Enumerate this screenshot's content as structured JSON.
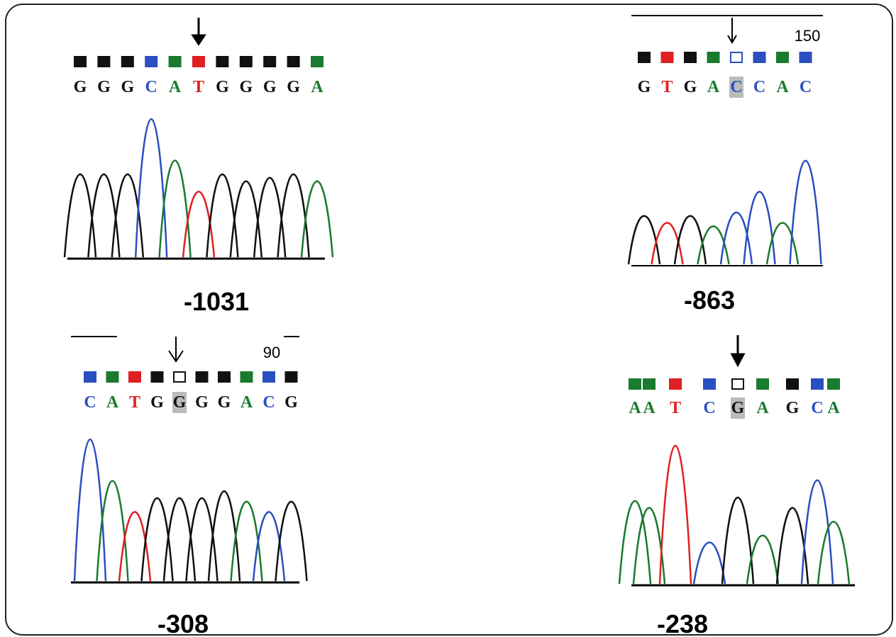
{
  "panels": [
    {
      "label": "-1031",
      "sequence": [
        "G",
        "G",
        "G",
        "C",
        "A",
        "T",
        "G",
        "G",
        "G",
        "G",
        "A"
      ]
    },
    {
      "label": "-863",
      "position": "150",
      "sequence": [
        "G",
        "T",
        "G",
        "A",
        "C",
        "C",
        "A",
        "C"
      ]
    },
    {
      "label": "-308",
      "position": "90",
      "sequence": [
        "C",
        "A",
        "T",
        "G",
        "G",
        "G",
        "G",
        "A",
        "C",
        "G"
      ]
    },
    {
      "label": "-238",
      "sequence": [
        "A",
        "A",
        "T",
        "C",
        "G",
        "A",
        "G",
        "C",
        "A"
      ]
    }
  ]
}
